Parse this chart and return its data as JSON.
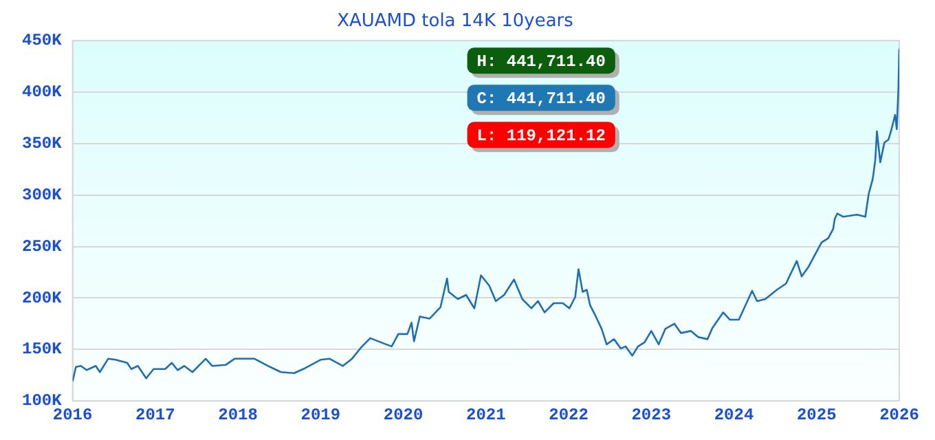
{
  "chart_data": {
    "type": "line",
    "title": "XAUAMD tola 14K 10years",
    "x": [
      2016.0,
      2016.04,
      2016.1,
      2016.17,
      2016.28,
      2016.33,
      2016.43,
      2016.52,
      2016.66,
      2016.71,
      2016.79,
      2016.89,
      2016.98,
      2017.12,
      2017.2,
      2017.27,
      2017.35,
      2017.45,
      2017.61,
      2017.69,
      2017.85,
      2017.96,
      2018.2,
      2018.39,
      2018.52,
      2018.68,
      2018.79,
      2019.0,
      2019.11,
      2019.27,
      2019.38,
      2019.49,
      2019.6,
      2019.76,
      2019.86,
      2019.94,
      2020.05,
      2020.1,
      2020.13,
      2020.2,
      2020.32,
      2020.45,
      2020.53,
      2020.55,
      2020.66,
      2020.76,
      2020.86,
      2020.94,
      2021.04,
      2021.12,
      2021.22,
      2021.34,
      2021.44,
      2021.55,
      2021.63,
      2021.71,
      2021.82,
      2021.93,
      2022.01,
      2022.08,
      2022.12,
      2022.17,
      2022.22,
      2022.26,
      2022.33,
      2022.4,
      2022.46,
      2022.55,
      2022.63,
      2022.69,
      2022.77,
      2022.84,
      2022.92,
      2023.0,
      2023.09,
      2023.17,
      2023.28,
      2023.36,
      2023.48,
      2023.57,
      2023.68,
      2023.74,
      2023.87,
      2023.95,
      2024.06,
      2024.14,
      2024.22,
      2024.28,
      2024.38,
      2024.52,
      2024.63,
      2024.76,
      2024.82,
      2024.9,
      2025.0,
      2025.06,
      2025.14,
      2025.2,
      2025.22,
      2025.25,
      2025.32,
      2025.49,
      2025.59,
      2025.63,
      2025.68,
      2025.71,
      2025.73,
      2025.77,
      2025.82,
      2025.87,
      2025.9,
      2025.95,
      2025.97,
      2025.99,
      2026.0
    ],
    "series": [
      {
        "color": "#1f6fb0",
        "values": [
          119121,
          133000,
          134000,
          130000,
          134000,
          128000,
          141000,
          140000,
          137000,
          131000,
          134000,
          122000,
          131000,
          131000,
          137000,
          130000,
          134000,
          128000,
          141000,
          134000,
          135000,
          141000,
          141000,
          133000,
          128000,
          127000,
          131000,
          140000,
          141000,
          134000,
          141000,
          152000,
          161000,
          156000,
          153000,
          165000,
          165000,
          176000,
          158000,
          182000,
          180000,
          191000,
          219000,
          206000,
          199000,
          203000,
          190000,
          222000,
          212000,
          197000,
          203000,
          218000,
          199000,
          190000,
          197000,
          186000,
          195000,
          195000,
          190000,
          201000,
          228000,
          206000,
          208000,
          193000,
          182000,
          170000,
          155000,
          160000,
          151000,
          153000,
          144000,
          153000,
          157000,
          168000,
          155000,
          170000,
          175000,
          166000,
          168000,
          162000,
          160000,
          171000,
          186000,
          179000,
          179000,
          193000,
          207000,
          197000,
          199000,
          208000,
          214000,
          236000,
          221000,
          230000,
          245000,
          254000,
          258000,
          267000,
          277000,
          282000,
          279000,
          281000,
          279000,
          301000,
          316000,
          334000,
          362000,
          332000,
          351000,
          354000,
          362000,
          378000,
          364000,
          404000,
          441711.4
        ]
      }
    ],
    "xlim": [
      2016,
      2026
    ],
    "xticks": [
      2016,
      2017,
      2018,
      2019,
      2020,
      2021,
      2022,
      2023,
      2024,
      2025,
      2026
    ],
    "ylim": [
      100000,
      450000
    ],
    "yticks": [
      {
        "value": 100000,
        "label": "100K"
      },
      {
        "value": 150000,
        "label": "150K"
      },
      {
        "value": 200000,
        "label": "200K"
      },
      {
        "value": 250000,
        "label": "250K"
      },
      {
        "value": 300000,
        "label": "300K"
      },
      {
        "value": 350000,
        "label": "350K"
      },
      {
        "value": 400000,
        "label": "400K"
      },
      {
        "value": 450000,
        "label": "450K"
      }
    ],
    "grid": "y",
    "marker": "none",
    "line_style": "solid",
    "annotations": [
      "H: 441,711.40",
      "C: 441,711.40",
      "L: 119,121.12"
    ]
  }
}
